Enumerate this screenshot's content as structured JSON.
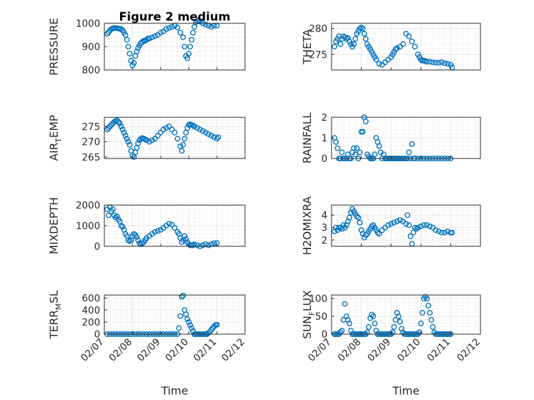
{
  "title": "Figure 2 medium",
  "colors": {
    "marker": "#0072BD",
    "axes": "#262626",
    "grid": "#dcdcdc",
    "background": "#ffffff"
  },
  "chart_data": [
    {
      "type": "scatter",
      "marker": "circle-open",
      "grid": true,
      "title": "Figure 2 medium",
      "ylabel": "PRESSURE",
      "ylabel_sub": "",
      "xlim": [
        0,
        5
      ],
      "xticks": [],
      "xticklabels": [],
      "ylim": [
        800,
        1000
      ],
      "yticks": [
        800,
        900,
        1000
      ],
      "yticklabels": [
        "800",
        "900",
        "1000"
      ],
      "x": [
        0.1,
        0.15,
        0.2,
        0.25,
        0.3,
        0.35,
        0.4,
        0.45,
        0.5,
        0.55,
        0.6,
        0.65,
        0.7,
        0.75,
        0.8,
        0.85,
        0.9,
        0.95,
        1.0,
        1.05,
        1.1,
        1.15,
        1.2,
        1.25,
        1.3,
        1.35,
        1.4,
        1.45,
        1.5,
        1.55,
        1.6,
        1.7,
        1.8,
        1.9,
        2.0,
        2.1,
        2.2,
        2.3,
        2.4,
        2.5,
        2.6,
        2.7,
        2.8,
        2.85,
        2.9,
        2.95,
        3.0,
        3.05,
        3.1,
        3.15,
        3.2,
        3.25,
        3.3,
        3.35,
        3.4,
        3.5,
        3.6,
        3.7,
        3.8,
        3.9,
        4.0
      ],
      "y": [
        955,
        962,
        970,
        975,
        978,
        980,
        980,
        979,
        978,
        976,
        975,
        970,
        960,
        950,
        930,
        900,
        870,
        840,
        820,
        830,
        860,
        880,
        895,
        905,
        915,
        920,
        925,
        925,
        930,
        935,
        935,
        940,
        945,
        950,
        960,
        965,
        975,
        980,
        985,
        990,
        982,
        960,
        940,
        900,
        860,
        850,
        870,
        900,
        930,
        960,
        985,
        1005,
        1010,
        1012,
        1008,
        1000,
        995,
        990,
        985,
        990,
        990
      ]
    },
    {
      "type": "scatter",
      "marker": "circle-open",
      "grid": true,
      "ylabel": "THETA",
      "ylabel_sub": "",
      "xlim": [
        0,
        5
      ],
      "xticks": [],
      "xticklabels": [],
      "ylim": [
        272,
        281
      ],
      "yticks": [
        275,
        280
      ],
      "yticklabels": [
        "275",
        "280"
      ],
      "x": [
        0.1,
        0.15,
        0.2,
        0.25,
        0.3,
        0.35,
        0.4,
        0.45,
        0.5,
        0.55,
        0.6,
        0.65,
        0.7,
        0.75,
        0.8,
        0.85,
        0.9,
        0.95,
        1.0,
        1.05,
        1.1,
        1.15,
        1.2,
        1.25,
        1.3,
        1.35,
        1.4,
        1.45,
        1.5,
        1.6,
        1.7,
        1.8,
        1.9,
        2.0,
        2.05,
        2.1,
        2.15,
        2.2,
        2.3,
        2.4,
        2.5,
        2.6,
        2.7,
        2.8,
        2.9,
        2.95,
        3.0,
        3.05,
        3.1,
        3.15,
        3.2,
        3.3,
        3.4,
        3.5,
        3.6,
        3.7,
        3.8,
        3.9,
        4.0,
        4.05
      ],
      "y": [
        276.5,
        277.5,
        278,
        278.5,
        277,
        278,
        278.5,
        278.3,
        278,
        278.2,
        277.5,
        277,
        276.5,
        277,
        278,
        279,
        279.5,
        280,
        280.2,
        280,
        279,
        278,
        277,
        276.5,
        276,
        275.5,
        275,
        274.5,
        274,
        273.2,
        273,
        273.5,
        274,
        274.5,
        275,
        275.5,
        276,
        276.2,
        276.5,
        277,
        279,
        278.5,
        277.5,
        276.5,
        275,
        274.5,
        274,
        273.8,
        273.8,
        273.7,
        273.6,
        273.6,
        273.5,
        273.4,
        273.4,
        273.5,
        273.3,
        273.2,
        273,
        272.5
      ]
    },
    {
      "type": "scatter",
      "marker": "circle-open",
      "grid": true,
      "ylabel": "AIR",
      "ylabel_sub": "T",
      "ylabel_suffix": "EMP",
      "xlim": [
        0,
        5
      ],
      "xticks": [],
      "xticklabels": [],
      "ylim": [
        264.5,
        278
      ],
      "yticks": [
        265,
        270,
        275
      ],
      "yticklabels": [
        "265",
        "270",
        "275"
      ],
      "x": [
        0.1,
        0.15,
        0.2,
        0.25,
        0.3,
        0.35,
        0.4,
        0.45,
        0.5,
        0.55,
        0.6,
        0.65,
        0.7,
        0.75,
        0.8,
        0.85,
        0.9,
        0.95,
        1.0,
        1.05,
        1.1,
        1.15,
        1.2,
        1.25,
        1.3,
        1.35,
        1.4,
        1.45,
        1.5,
        1.6,
        1.7,
        1.8,
        1.9,
        2.0,
        2.1,
        2.2,
        2.3,
        2.4,
        2.5,
        2.6,
        2.7,
        2.75,
        2.8,
        2.85,
        2.9,
        2.95,
        3.0,
        3.05,
        3.1,
        3.15,
        3.2,
        3.3,
        3.4,
        3.5,
        3.6,
        3.7,
        3.8,
        3.9,
        4.0,
        4.05
      ],
      "y": [
        274,
        274.5,
        275,
        275.5,
        276,
        276.5,
        276.8,
        277,
        276.5,
        276,
        275,
        274,
        273,
        272,
        271,
        270,
        269,
        267,
        265.5,
        265,
        266.5,
        268,
        269.5,
        270.5,
        271,
        271.2,
        271,
        270.8,
        270.5,
        270,
        270.5,
        271,
        272,
        273,
        274,
        274.5,
        275,
        274,
        273,
        271,
        268.5,
        267,
        269,
        271,
        273,
        274.5,
        275.5,
        275.7,
        275.5,
        275.3,
        275,
        274.5,
        274,
        273.5,
        273,
        272.5,
        272,
        271.5,
        271,
        271.5
      ]
    },
    {
      "type": "scatter",
      "marker": "circle-open",
      "grid": true,
      "ylabel": "RAINFALL",
      "ylabel_sub": "",
      "xlim": [
        0,
        5
      ],
      "xticks": [],
      "xticklabels": [],
      "ylim": [
        0,
        2
      ],
      "yticks": [
        0,
        1,
        2
      ],
      "yticklabels": [
        "0",
        "1",
        "2"
      ],
      "x": [
        0.1,
        0.15,
        0.2,
        0.25,
        0.3,
        0.35,
        0.4,
        0.45,
        0.5,
        0.55,
        0.6,
        0.65,
        0.7,
        0.75,
        0.8,
        0.85,
        0.9,
        0.95,
        1.0,
        1.05,
        1.1,
        1.15,
        1.2,
        1.25,
        1.3,
        1.35,
        1.4,
        1.45,
        1.5,
        1.55,
        1.6,
        1.65,
        1.7,
        1.75,
        1.8,
        1.85,
        1.9,
        1.95,
        2.0,
        2.05,
        2.1,
        2.15,
        2.2,
        2.25,
        2.3,
        2.35,
        2.4,
        2.45,
        2.5,
        2.55,
        2.6,
        2.65,
        2.7,
        2.75,
        2.8,
        2.9,
        3.0,
        3.1,
        3.2,
        3.3,
        3.4,
        3.5,
        3.6,
        3.7,
        3.8,
        3.9,
        4.0
      ],
      "y": [
        1,
        0.8,
        0.5,
        0,
        0,
        0.3,
        0,
        0,
        0,
        0.2,
        0,
        0,
        0.3,
        0.5,
        0.2,
        0.5,
        0,
        0.3,
        1.3,
        1.3,
        2,
        1.8,
        0.2,
        0.1,
        0,
        0,
        0,
        0.2,
        1,
        0.8,
        0.6,
        0.3,
        0,
        0.2,
        0,
        0,
        0,
        0,
        0,
        0,
        0,
        0,
        0,
        0,
        0,
        0,
        0,
        0,
        0,
        0,
        0.3,
        0,
        0.7,
        0,
        0,
        0,
        0,
        0,
        0,
        0,
        0,
        0,
        0,
        0,
        0,
        0,
        0
      ]
    },
    {
      "type": "scatter",
      "marker": "circle-open",
      "grid": true,
      "ylabel": "MIXDEPTH",
      "ylabel_sub": "",
      "xlim": [
        0,
        5
      ],
      "xticks": [],
      "xticklabels": [],
      "ylim": [
        0,
        2000
      ],
      "yticks": [
        0,
        1000,
        2000
      ],
      "yticklabels": [
        "0",
        "1000",
        "2000"
      ],
      "x": [
        0.1,
        0.15,
        0.2,
        0.25,
        0.3,
        0.35,
        0.4,
        0.45,
        0.5,
        0.55,
        0.6,
        0.65,
        0.7,
        0.75,
        0.8,
        0.85,
        0.9,
        0.95,
        1.0,
        1.05,
        1.1,
        1.15,
        1.2,
        1.25,
        1.3,
        1.35,
        1.4,
        1.45,
        1.5,
        1.6,
        1.7,
        1.8,
        1.9,
        2.0,
        2.1,
        2.2,
        2.3,
        2.4,
        2.5,
        2.6,
        2.65,
        2.7,
        2.75,
        2.8,
        2.85,
        2.9,
        2.95,
        3.0,
        3.05,
        3.1,
        3.15,
        3.2,
        3.3,
        3.4,
        3.5,
        3.6,
        3.7,
        3.8,
        3.9,
        4.0
      ],
      "y": [
        1800,
        1500,
        1900,
        1700,
        1800,
        1500,
        1400,
        1450,
        1300,
        1200,
        1000,
        950,
        800,
        600,
        500,
        300,
        250,
        300,
        500,
        600,
        550,
        450,
        300,
        150,
        100,
        150,
        200,
        300,
        400,
        500,
        600,
        700,
        750,
        800,
        900,
        1000,
        1100,
        1050,
        900,
        700,
        600,
        400,
        200,
        300,
        500,
        350,
        200,
        100,
        50,
        50,
        50,
        100,
        50,
        0,
        50,
        100,
        50,
        100,
        150,
        150
      ]
    },
    {
      "type": "scatter",
      "marker": "circle-open",
      "grid": true,
      "ylabel": "H2OMIXRA",
      "ylabel_sub": "",
      "xlim": [
        0,
        5
      ],
      "xticks": [],
      "xticklabels": [],
      "ylim": [
        1.5,
        4.8
      ],
      "yticks": [
        2,
        3,
        4
      ],
      "yticklabels": [
        "2",
        "3",
        "4"
      ],
      "x": [
        0.1,
        0.15,
        0.2,
        0.25,
        0.3,
        0.35,
        0.4,
        0.45,
        0.5,
        0.55,
        0.6,
        0.65,
        0.7,
        0.75,
        0.8,
        0.85,
        0.9,
        0.95,
        1.0,
        1.05,
        1.1,
        1.15,
        1.2,
        1.25,
        1.3,
        1.35,
        1.4,
        1.45,
        1.5,
        1.55,
        1.6,
        1.7,
        1.8,
        1.9,
        2.0,
        2.1,
        2.2,
        2.3,
        2.4,
        2.5,
        2.55,
        2.6,
        2.65,
        2.7,
        2.75,
        2.8,
        2.85,
        2.9,
        3.0,
        3.1,
        3.2,
        3.3,
        3.4,
        3.5,
        3.6,
        3.7,
        3.8,
        3.9,
        4.0,
        4.05
      ],
      "y": [
        2.7,
        3,
        2.8,
        3,
        3,
        2.9,
        3.2,
        3,
        3.2,
        3.5,
        3.8,
        4.2,
        4.5,
        4.3,
        4.1,
        3.9,
        3.8,
        3.4,
        2.8,
        2.5,
        2.2,
        2.4,
        2.5,
        2.7,
        2.9,
        3.1,
        3.2,
        3,
        2.8,
        2.6,
        2.5,
        2.8,
        3,
        3.2,
        3.3,
        3.4,
        3.5,
        3.6,
        3.5,
        3.3,
        4,
        3.2,
        2.3,
        1.7,
        2.6,
        3,
        2.9,
        3,
        3.1,
        3.2,
        3.2,
        3.1,
        3,
        2.8,
        2.7,
        2.6,
        2.6,
        2.7,
        2.6,
        2.6
      ]
    },
    {
      "type": "scatter",
      "marker": "circle-open",
      "grid": true,
      "ylabel": "TERR",
      "ylabel_sub": "M",
      "ylabel_suffix": "SL",
      "xlabel": "Time",
      "xlim": [
        0,
        5
      ],
      "xticks": [
        0,
        1,
        2,
        3,
        4,
        5
      ],
      "xticklabels": [
        "02/07",
        "02/08",
        "02/09",
        "02/10",
        "02/11",
        "02/12"
      ],
      "ylim": [
        0,
        650
      ],
      "yticks": [
        0,
        200,
        400,
        600
      ],
      "yticklabels": [
        "0",
        "200",
        "400",
        "600"
      ],
      "x": [
        0.1,
        0.2,
        0.3,
        0.4,
        0.5,
        0.6,
        0.7,
        0.8,
        0.9,
        1.0,
        1.1,
        1.2,
        1.3,
        1.4,
        1.5,
        1.6,
        1.7,
        1.8,
        1.9,
        2.0,
        2.1,
        2.2,
        2.3,
        2.4,
        2.5,
        2.6,
        2.65,
        2.7,
        2.75,
        2.8,
        2.85,
        2.9,
        2.95,
        3.0,
        3.05,
        3.1,
        3.15,
        3.2,
        3.25,
        3.3,
        3.35,
        3.4,
        3.45,
        3.5,
        3.55,
        3.6,
        3.65,
        3.7,
        3.75,
        3.8,
        3.85,
        3.9,
        3.95,
        4.0
      ],
      "y": [
        0,
        0,
        0,
        0,
        0,
        0,
        0,
        0,
        0,
        0,
        0,
        0,
        0,
        0,
        0,
        0,
        0,
        0,
        0,
        0,
        0,
        0,
        0,
        0,
        0,
        0,
        100,
        300,
        620,
        640,
        400,
        330,
        250,
        200,
        150,
        100,
        50,
        0,
        0,
        0,
        0,
        0,
        0,
        0,
        0,
        0,
        0,
        20,
        40,
        70,
        100,
        130,
        150,
        155
      ]
    },
    {
      "type": "scatter",
      "marker": "circle-open",
      "grid": true,
      "ylabel": "SUN",
      "ylabel_sub": "F",
      "ylabel_suffix": "LUX",
      "xlabel": "Time",
      "xlim": [
        0,
        5
      ],
      "xticks": [
        0,
        1,
        2,
        3,
        4,
        5
      ],
      "xticklabels": [
        "02/07",
        "02/08",
        "02/09",
        "02/10",
        "02/11",
        "02/12"
      ],
      "ylim": [
        0,
        110
      ],
      "yticks": [
        0,
        50,
        100
      ],
      "yticklabels": [
        "0",
        "50",
        "100"
      ],
      "x": [
        0.1,
        0.15,
        0.2,
        0.25,
        0.3,
        0.35,
        0.4,
        0.45,
        0.5,
        0.55,
        0.6,
        0.65,
        0.7,
        0.75,
        0.8,
        0.85,
        0.9,
        0.95,
        1.0,
        1.05,
        1.1,
        1.15,
        1.2,
        1.25,
        1.3,
        1.35,
        1.4,
        1.45,
        1.5,
        1.55,
        1.6,
        1.65,
        1.7,
        1.75,
        1.8,
        1.85,
        1.9,
        1.95,
        2.0,
        2.05,
        2.1,
        2.15,
        2.2,
        2.25,
        2.3,
        2.35,
        2.4,
        2.45,
        2.5,
        2.55,
        2.6,
        2.65,
        2.7,
        2.75,
        2.8,
        2.85,
        2.9,
        2.95,
        3.0,
        3.05,
        3.1,
        3.15,
        3.2,
        3.25,
        3.3,
        3.35,
        3.4,
        3.45,
        3.5,
        3.55,
        3.6,
        3.65,
        3.7,
        3.75,
        3.8,
        3.85,
        3.9,
        3.95,
        4.0
      ],
      "y": [
        0,
        0,
        0,
        0,
        5,
        10,
        40,
        85,
        50,
        40,
        30,
        10,
        0,
        0,
        0,
        0,
        0,
        0,
        0,
        0,
        0,
        0,
        5,
        20,
        45,
        55,
        50,
        30,
        10,
        0,
        0,
        0,
        0,
        0,
        0,
        0,
        0,
        0,
        0,
        5,
        20,
        40,
        60,
        50,
        35,
        15,
        5,
        0,
        0,
        0,
        0,
        0,
        0,
        0,
        0,
        0,
        0,
        5,
        30,
        60,
        100,
        105,
        100,
        80,
        60,
        40,
        20,
        5,
        0,
        0,
        0,
        0,
        0,
        0,
        0,
        0,
        0,
        0,
        0
      ]
    }
  ]
}
